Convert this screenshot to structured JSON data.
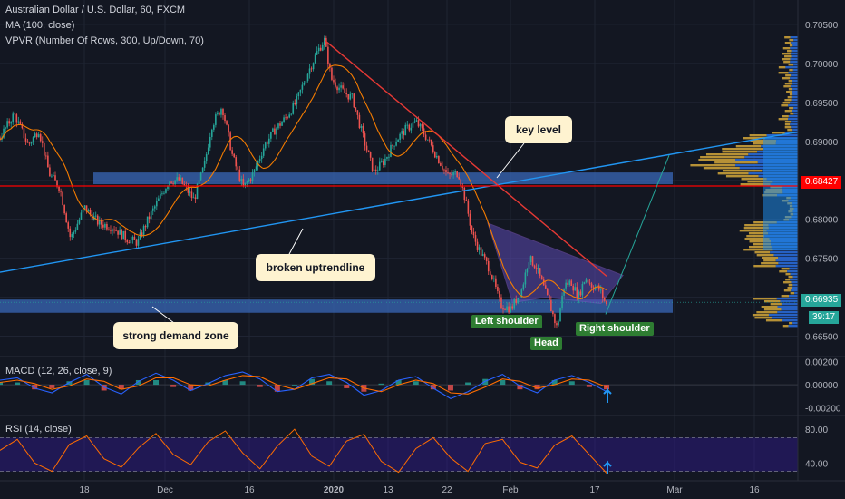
{
  "header": {
    "symbol_title": "Australian Dollar / U.S. Dollar, 60, FXCM",
    "ma_indicator": "MA (100, close)",
    "vpvr_indicator": "VPVR (Number Of Rows, 300, Up/Down, 70)"
  },
  "annotations": {
    "key_level": "key level",
    "broken_uptrendline": "broken uptrendline",
    "strong_demand_zone": "strong demand zone",
    "left_shoulder": "Left shoulder",
    "head": "Head",
    "right_shoulder": "Right shoulder"
  },
  "price_labels": {
    "horizontal_line": "0.68427",
    "last_price": "0.66935",
    "countdown": "39:17"
  },
  "colors": {
    "background": "#131722",
    "candle_up": "#26a69a",
    "candle_down": "#ef5350",
    "moving_average": "#f57c00",
    "zone": "#3a68b8",
    "uptrend_line": "#2196f3",
    "downtrend_line": "#e53935",
    "horizontal_line": "#ff0000",
    "pattern_fill": "#5c4bb5",
    "vpvr_up": "#d4a73a",
    "vpvr_down": "#2a6fe0",
    "callout": "#fef3d0",
    "pattern_label": "#2e7d32",
    "macd_line": "#2962ff",
    "signal_line": "#ff6d00",
    "rsi_line": "#ff6d00",
    "rsi_band": "#311b92",
    "arrow": "#2196f3"
  },
  "chart_data": [
    {
      "type": "candlestick",
      "title": "Australian Dollar / U.S. Dollar, 60, FXCM",
      "x_ticks": [
        "18",
        "Dec",
        "16",
        "2020",
        "13",
        "22",
        "Feb",
        "17",
        "Mar",
        "16"
      ],
      "y_ticks": [
        "0.70500",
        "0.70000",
        "0.69500",
        "0.69000",
        "0.68500",
        "0.68000",
        "0.67500",
        "0.67000",
        "0.66500"
      ],
      "ylim": [
        0.6632,
        0.7072
      ],
      "price_path": [
        [
          0,
          0.6905
        ],
        [
          0.02,
          0.6935
        ],
        [
          0.04,
          0.6895
        ],
        [
          0.055,
          0.6915
        ],
        [
          0.07,
          0.6858
        ],
        [
          0.085,
          0.684
        ],
        [
          0.1,
          0.6775
        ],
        [
          0.12,
          0.6815
        ],
        [
          0.14,
          0.6795
        ],
        [
          0.16,
          0.679
        ],
        [
          0.18,
          0.6775
        ],
        [
          0.195,
          0.677
        ],
        [
          0.21,
          0.68
        ],
        [
          0.225,
          0.6825
        ],
        [
          0.24,
          0.685
        ],
        [
          0.255,
          0.685
        ],
        [
          0.275,
          0.6825
        ],
        [
          0.29,
          0.687
        ],
        [
          0.3,
          0.692
        ],
        [
          0.315,
          0.6945
        ],
        [
          0.33,
          0.688
        ],
        [
          0.345,
          0.684
        ],
        [
          0.36,
          0.686
        ],
        [
          0.375,
          0.6895
        ],
        [
          0.39,
          0.6915
        ],
        [
          0.405,
          0.693
        ],
        [
          0.42,
          0.695
        ],
        [
          0.435,
          0.6985
        ],
        [
          0.45,
          0.7015
        ],
        [
          0.46,
          0.703
        ],
        [
          0.47,
          0.698
        ],
        [
          0.485,
          0.6965
        ],
        [
          0.5,
          0.6955
        ],
        [
          0.515,
          0.6905
        ],
        [
          0.53,
          0.686
        ],
        [
          0.545,
          0.6875
        ],
        [
          0.56,
          0.69
        ],
        [
          0.575,
          0.6915
        ],
        [
          0.59,
          0.6925
        ],
        [
          0.605,
          0.6905
        ],
        [
          0.62,
          0.688
        ],
        [
          0.635,
          0.6855
        ],
        [
          0.65,
          0.686
        ],
        [
          0.66,
          0.6825
        ],
        [
          0.67,
          0.678
        ],
        [
          0.68,
          0.676
        ],
        [
          0.695,
          0.6735
        ],
        [
          0.71,
          0.669
        ],
        [
          0.725,
          0.6685
        ],
        [
          0.74,
          0.671
        ],
        [
          0.75,
          0.675
        ],
        [
          0.76,
          0.674
        ],
        [
          0.77,
          0.6715
        ],
        [
          0.78,
          0.669
        ],
        [
          0.79,
          0.666
        ],
        [
          0.8,
          0.6715
        ],
        [
          0.81,
          0.672
        ],
        [
          0.82,
          0.67
        ],
        [
          0.83,
          0.6725
        ],
        [
          0.84,
          0.6715
        ],
        [
          0.85,
          0.671
        ],
        [
          0.86,
          0.669
        ]
      ],
      "moving_average": "MA (100, close)",
      "horizontal_line": 0.68427,
      "last_price": 0.66935,
      "zones": [
        {
          "label": "key level",
          "low": 0.6845,
          "high": 0.686
        },
        {
          "label": "strong demand zone",
          "low": 0.668,
          "high": 0.6697
        }
      ],
      "trendlines": [
        {
          "label": "broken uptrendline",
          "from": [
            0,
            0.6732
          ],
          "to": [
            1.21,
            0.6912
          ]
        },
        {
          "label": "downtrend",
          "from": [
            0.46,
            0.703
          ],
          "to": [
            0.86,
            0.6727
          ]
        }
      ],
      "pattern": {
        "type": "head and shoulders",
        "labels": [
          "Left shoulder",
          "Head",
          "Right shoulder"
        ],
        "projection_target": 0.6882
      },
      "volume_profile": "VPVR (Number Of Rows, 300, Up/Down, 70)"
    },
    {
      "type": "line",
      "title": "MACD (12, 26, close, 9)",
      "y_ticks": [
        "0.00200",
        "0.00000",
        "-0.00200"
      ],
      "ylim": [
        -0.0025,
        0.0022
      ],
      "series": [
        {
          "name": "MACD",
          "values": [
            0.0004,
            0.0006,
            -0.0003,
            -0.0007,
            0.0002,
            0.0009,
            -0.0002,
            -0.0008,
            0.0003,
            0.001,
            0.0004,
            -0.0005,
            0.0001,
            0.0008,
            0.0011,
            0.0005,
            -0.0006,
            -0.0004,
            0.0006,
            0.0009,
            0.0002,
            -0.0009,
            -0.0005,
            0.0004,
            0.0007,
            -0.0003,
            -0.0012,
            -0.0006,
            0.0003,
            0.0009,
            -0.0001,
            -0.0007,
            0.0004,
            0.0008,
            0.0002,
            -0.0006
          ]
        },
        {
          "name": "Signal",
          "values": [
            0.0002,
            0.0004,
            0.0001,
            -0.0004,
            -0.0001,
            0.0005,
            0.0003,
            -0.0004,
            -0.0001,
            0.0006,
            0.0006,
            0.0,
            -0.0001,
            0.0004,
            0.0008,
            0.0007,
            0.0,
            -0.0004,
            0.0001,
            0.0006,
            0.0005,
            -0.0003,
            -0.0006,
            0.0,
            0.0004,
            0.0001,
            -0.0007,
            -0.0008,
            -0.0002,
            0.0005,
            0.0003,
            -0.0003,
            0.0,
            0.0005,
            0.0004,
            -0.0002
          ]
        }
      ]
    },
    {
      "type": "line",
      "title": "RSI (14, close)",
      "y_ticks": [
        "80.00",
        "40.00"
      ],
      "ylim": [
        21,
        93
      ],
      "band": [
        30,
        70
      ],
      "series": [
        {
          "name": "RSI",
          "values": [
            55,
            68,
            40,
            30,
            62,
            72,
            45,
            35,
            58,
            75,
            50,
            38,
            65,
            78,
            52,
            33,
            60,
            80,
            48,
            36,
            66,
            74,
            42,
            29,
            57,
            70,
            46,
            30,
            63,
            68,
            41,
            34,
            61,
            72,
            50,
            28
          ]
        }
      ]
    }
  ]
}
